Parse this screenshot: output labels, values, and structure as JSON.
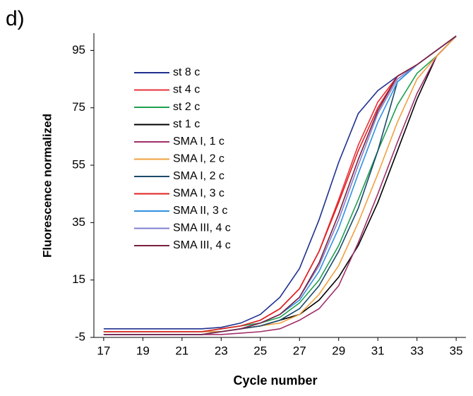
{
  "chart_data": {
    "type": "line",
    "panel_label": "d)",
    "x_label": "Cycle number",
    "y_label": "Fluorescence normalized",
    "x": [
      17,
      18,
      19,
      20,
      21,
      22,
      23,
      24,
      25,
      26,
      27,
      28,
      29,
      30,
      31,
      32,
      33,
      34,
      35
    ],
    "xlim": [
      16.5,
      35.5
    ],
    "xticks": [
      17,
      19,
      21,
      23,
      25,
      27,
      29,
      31,
      33,
      35
    ],
    "ylim": [
      -5,
      101
    ],
    "yticks": [
      -5,
      15,
      35,
      55,
      75,
      95
    ],
    "legend": "upper left",
    "series": [
      {
        "name": "st 8 c",
        "color": "#1f2f8f",
        "values": [
          -2,
          -2,
          -2,
          -2,
          -2,
          -2,
          -1.5,
          0,
          3,
          9,
          19,
          36,
          56,
          73,
          81,
          86,
          90,
          95,
          100
        ]
      },
      {
        "name": "st 4 c",
        "color": "#e8323a",
        "values": [
          -3,
          -3,
          -3,
          -3,
          -3,
          -3,
          -2,
          -1,
          1,
          5,
          12,
          25,
          43,
          62,
          77,
          86,
          90,
          95,
          100
        ]
      },
      {
        "name": "st 2 c",
        "color": "#1fa050",
        "values": [
          -3,
          -3,
          -3,
          -3,
          -3,
          -3,
          -2,
          -1,
          0,
          2,
          7,
          15,
          27,
          43,
          60,
          76,
          87,
          93,
          100
        ]
      },
      {
        "name": "st 1 c",
        "color": "#000000",
        "values": [
          -3,
          -3,
          -3,
          -3,
          -3,
          -3,
          -3,
          -2,
          -1,
          1,
          3,
          8,
          16,
          27,
          42,
          60,
          78,
          93,
          100
        ]
      },
      {
        "name": "SMA I, 1 c",
        "color": "#a0306a",
        "values": [
          -4,
          -4,
          -4,
          -4,
          -4,
          -4,
          -4,
          -3.5,
          -3,
          -2,
          1,
          5,
          13,
          28,
          45,
          63,
          80,
          93,
          100
        ]
      },
      {
        "name": "SMA I, 2 c",
        "color": "#f0a040",
        "values": [
          -3,
          -3,
          -3,
          -3,
          -3,
          -3,
          -3,
          -2,
          -1,
          0,
          3,
          10,
          20,
          35,
          52,
          70,
          85,
          93,
          100
        ]
      },
      {
        "name": "SMA I, 2 c",
        "color": "#1a4a6a",
        "values": [
          -4,
          -4,
          -4,
          -4,
          -4,
          -4,
          -3,
          -2,
          -1,
          1,
          5,
          13,
          25,
          40,
          60,
          84,
          90,
          95,
          100
        ]
      },
      {
        "name": "SMA I, 3 c",
        "color": "#e02020",
        "values": [
          -3,
          -3,
          -3,
          -3,
          -3,
          -3,
          -2,
          -1,
          1,
          5,
          12,
          25,
          42,
          60,
          75,
          86,
          90,
          95,
          100
        ]
      },
      {
        "name": "SMA II, 3 c",
        "color": "#3090e0",
        "values": [
          -4,
          -4,
          -4,
          -4,
          -4,
          -4,
          -3,
          -2,
          0,
          3,
          8,
          18,
          33,
          52,
          70,
          84,
          90,
          95,
          100
        ]
      },
      {
        "name": "SMA III, 4 c",
        "color": "#8080d0",
        "values": [
          -4,
          -4,
          -4,
          -4,
          -4,
          -4,
          -3,
          -2,
          0,
          3,
          9,
          20,
          36,
          55,
          73,
          85,
          90,
          95,
          100
        ]
      },
      {
        "name": "SMA III, 4 c",
        "color": "#7a2040",
        "values": [
          -4,
          -4,
          -4,
          -4,
          -4,
          -4,
          -3,
          -2,
          0,
          3,
          9,
          21,
          38,
          57,
          74,
          86,
          90,
          95,
          100
        ]
      }
    ]
  }
}
